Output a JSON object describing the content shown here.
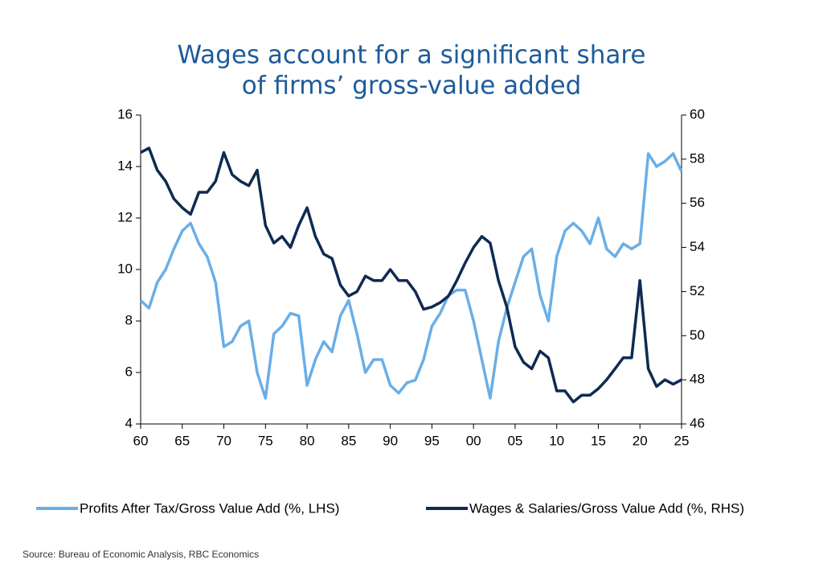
{
  "chart_data": {
    "type": "line",
    "title": [
      "Wages account for a significant share",
      "of firms’ gross-value added"
    ],
    "source": "Source: Bureau of Economic Analysis, RBC Economics",
    "x": [
      1960,
      1961,
      1962,
      1963,
      1964,
      1965,
      1966,
      1967,
      1968,
      1969,
      1970,
      1971,
      1972,
      1973,
      1974,
      1975,
      1976,
      1977,
      1978,
      1979,
      1980,
      1981,
      1982,
      1983,
      1984,
      1985,
      1986,
      1987,
      1988,
      1989,
      1990,
      1991,
      1992,
      1993,
      1994,
      1995,
      1996,
      1997,
      1998,
      1999,
      2000,
      2001,
      2002,
      2003,
      2004,
      2005,
      2006,
      2007,
      2008,
      2009,
      2010,
      2011,
      2012,
      2013,
      2014,
      2015,
      2016,
      2017,
      2018,
      2019,
      2020,
      2021,
      2022,
      2023,
      2024,
      2025
    ],
    "xlim": [
      1960,
      2025
    ],
    "xticks": [
      {
        "value": 1960,
        "label": "60"
      },
      {
        "value": 1965,
        "label": "65"
      },
      {
        "value": 1970,
        "label": "70"
      },
      {
        "value": 1975,
        "label": "75"
      },
      {
        "value": 1980,
        "label": "80"
      },
      {
        "value": 1985,
        "label": "85"
      },
      {
        "value": 1990,
        "label": "90"
      },
      {
        "value": 1995,
        "label": "95"
      },
      {
        "value": 2000,
        "label": "00"
      },
      {
        "value": 2005,
        "label": "05"
      },
      {
        "value": 2010,
        "label": "10"
      },
      {
        "value": 2015,
        "label": "15"
      },
      {
        "value": 2020,
        "label": "20"
      },
      {
        "value": 2025,
        "label": "25"
      }
    ],
    "ylim": [
      4,
      16
    ],
    "yticks": [
      4,
      6,
      8,
      10,
      12,
      14,
      16
    ],
    "y2lim": [
      46,
      60
    ],
    "y2ticks": [
      46,
      48,
      50,
      52,
      54,
      56,
      58,
      60
    ],
    "series": [
      {
        "name": "Profits After Tax/Gross Value Add (%, LHS)",
        "color": "#6aaee6",
        "values": [
          8.8,
          8.5,
          9.5,
          10.0,
          10.8,
          11.5,
          11.8,
          11.0,
          10.5,
          9.5,
          7.0,
          7.2,
          7.8,
          8.0,
          6.0,
          5.0,
          7.5,
          7.8,
          8.3,
          8.2,
          5.5,
          6.5,
          7.2,
          6.8,
          8.2,
          8.8,
          7.5,
          6.0,
          6.5,
          6.5,
          5.5,
          5.2,
          5.6,
          5.7,
          6.5,
          7.8,
          8.3,
          9.0,
          9.2,
          9.2,
          8.0,
          6.5,
          5.0,
          7.2,
          8.5,
          9.5,
          10.5,
          10.8,
          9.0,
          8.0,
          10.5,
          11.5,
          11.8,
          11.5,
          11.0,
          12.0,
          10.8,
          10.5,
          11.0,
          10.8,
          11.0,
          14.5,
          14.0,
          14.2,
          14.5,
          13.8
        ]
      },
      {
        "name": "Wages & Salaries/Gross Value Add (%, RHS)",
        "color": "#0f2a52",
        "axis": "y2",
        "values": [
          58.3,
          58.5,
          57.5,
          57.0,
          56.2,
          55.8,
          55.5,
          56.5,
          56.5,
          57.0,
          58.3,
          57.3,
          57.0,
          56.8,
          57.5,
          55.0,
          54.2,
          54.5,
          54.0,
          55.0,
          55.8,
          54.5,
          53.7,
          53.5,
          52.3,
          51.8,
          52.0,
          52.7,
          52.5,
          52.5,
          53.0,
          52.5,
          52.5,
          52.0,
          51.2,
          51.3,
          51.5,
          51.8,
          52.5,
          53.3,
          54.0,
          54.5,
          54.2,
          52.5,
          51.3,
          49.5,
          48.8,
          48.5,
          49.3,
          49.0,
          47.5,
          47.5,
          47.0,
          47.3,
          47.3,
          47.6,
          48.0,
          48.5,
          49.0,
          49.0,
          52.5,
          48.5,
          47.7,
          48.0,
          47.8,
          48.0
        ]
      }
    ]
  }
}
